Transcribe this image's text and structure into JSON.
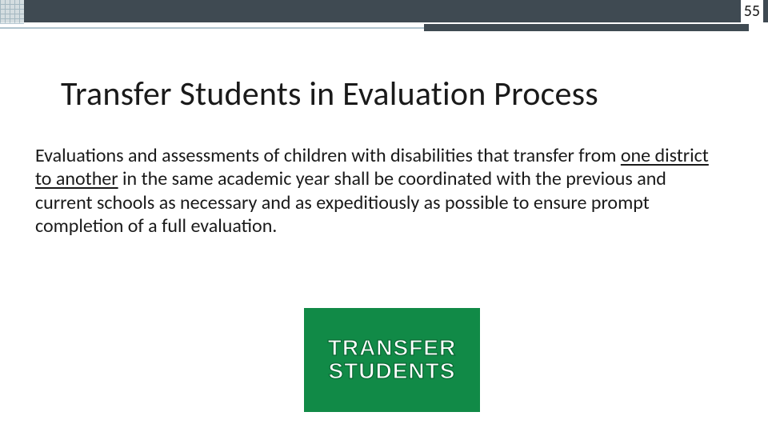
{
  "header": {
    "page_number": "55",
    "top_bar_color": "#3f4a52",
    "accent_thin_color": "#b0c4ce",
    "accent_thick_color": "#3f4a52"
  },
  "title": "Transfer Students in Evaluation Process",
  "body": {
    "pre": "Evaluations and assessments of children with disabilities that transfer from ",
    "underlined": "one district to another",
    "post": " in the same academic year shall be coordinated with the previous and current schools as necessary and as expeditiously as possible to ensure prompt completion of a full evaluation."
  },
  "badge": {
    "line1": "TRANSFER",
    "line2": "STUDENTS",
    "background_color": "#118a47",
    "text_color": "#ffffff",
    "outline_color": "#0c6b36"
  }
}
